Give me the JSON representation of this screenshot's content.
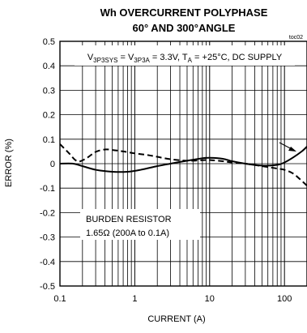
{
  "chart_data": {
    "type": "line",
    "title_line1": "Wh OVERCURRENT POLYPHASE",
    "title_line2": "60° AND 300°ANGLE",
    "figure_code": "toc02",
    "xlabel": "CURRENT (A)",
    "ylabel": "ERROR (%)",
    "x_scale": "log",
    "xlim": [
      0.1,
      200
    ],
    "ylim": [
      -0.5,
      0.5
    ],
    "x_tick_labels": [
      "0.1",
      "1",
      "10",
      "100"
    ],
    "x_tick_values": [
      0.1,
      1,
      10,
      100
    ],
    "y_tick_labels": [
      "0.5",
      "0.4",
      "0.3",
      "0.2",
      "0.1",
      "0",
      "-0.1",
      "-0.2",
      "-0.3",
      "-0.4",
      "-0.5"
    ],
    "y_tick_values": [
      0.5,
      0.4,
      0.3,
      0.2,
      0.1,
      0,
      -0.1,
      -0.2,
      -0.3,
      -0.4,
      -0.5
    ],
    "grid": true,
    "conditions": {
      "v_sys_main": "V",
      "v_sys_sub": "3P3SYS",
      "eq1": " = V",
      "v_a_sub": "3P3A",
      "eq2": " = 3.3V, T",
      "t_sub": "A",
      "rest": " = +25°C, DC SUPPLY"
    },
    "annotation_line1": "BURDEN RESISTOR",
    "annotation_line2": "1.65Ω (200A to 0.1A)",
    "series": [
      {
        "style": "solid",
        "x": [
          0.1,
          0.15,
          0.2,
          0.3,
          0.5,
          0.8,
          1.2,
          2,
          3,
          5,
          8,
          10,
          15,
          20,
          30,
          50,
          80,
          100,
          130,
          170,
          200
        ],
        "y": [
          0.0,
          0.0,
          -0.01,
          -0.025,
          -0.033,
          -0.033,
          -0.025,
          -0.01,
          0.0,
          0.012,
          0.022,
          0.024,
          0.02,
          0.01,
          0.0,
          -0.008,
          -0.005,
          0.005,
          0.025,
          0.05,
          0.07
        ]
      },
      {
        "style": "dashed",
        "x": [
          0.1,
          0.13,
          0.17,
          0.22,
          0.3,
          0.4,
          0.5,
          0.7,
          1,
          1.5,
          2,
          3,
          5,
          8,
          10,
          15,
          20,
          30,
          50,
          80,
          100,
          130,
          170,
          200
        ],
        "y": [
          0.08,
          0.045,
          0.01,
          0.02,
          0.048,
          0.058,
          0.056,
          0.05,
          0.042,
          0.035,
          0.028,
          0.018,
          0.012,
          0.014,
          0.015,
          0.01,
          0.005,
          0.0,
          -0.01,
          -0.02,
          -0.025,
          -0.04,
          -0.07,
          -0.09
        ]
      }
    ]
  }
}
